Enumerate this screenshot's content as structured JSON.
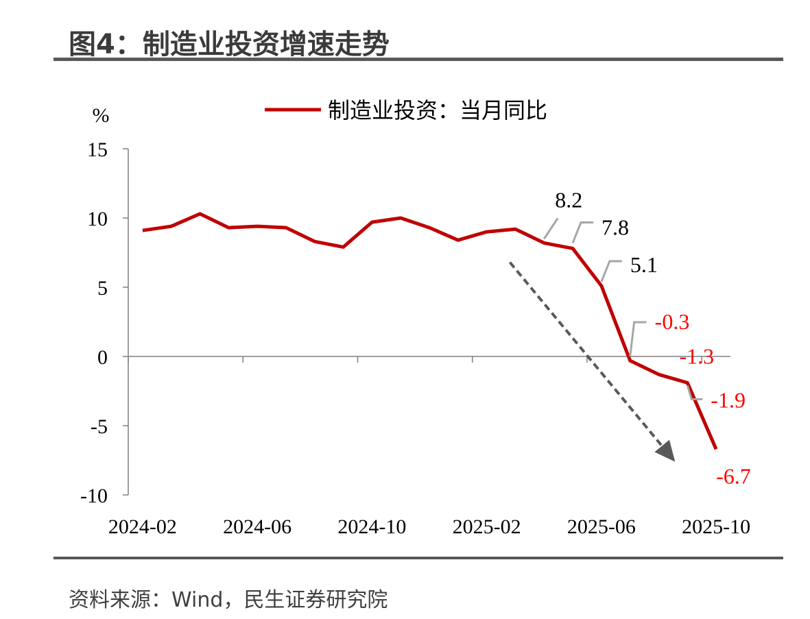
{
  "figure": {
    "title": "图4：制造业投资增速走势",
    "source": "资料来源：Wind，民生证券研究院"
  },
  "chart_data": {
    "type": "line",
    "title": "",
    "ylabel": "%",
    "xlabel": "",
    "ylim": [
      -10,
      15
    ],
    "yticks": [
      15,
      10,
      5,
      0,
      -5,
      -10
    ],
    "ytick_labels": [
      "15",
      "10",
      "5",
      "0",
      "-5",
      "-10"
    ],
    "grid": false,
    "legend_position": "top-center",
    "x": [
      "2024-02",
      "2024-03",
      "2024-04",
      "2024-05",
      "2024-06",
      "2024-07",
      "2024-08",
      "2024-09",
      "2024-10",
      "2024-11",
      "2024-12",
      "2025-01",
      "2025-02",
      "2025-03",
      "2025-04",
      "2025-05",
      "2025-06",
      "2025-07",
      "2025-08",
      "2025-09",
      "2025-10"
    ],
    "xtick_labels": [
      "2024-02",
      "2024-06",
      "2024-10",
      "2025-02",
      "2025-06",
      "2025-10"
    ],
    "series": [
      {
        "name": "制造业投资：当月同比",
        "color": "#c00000",
        "values": [
          9.1,
          9.4,
          10.3,
          9.3,
          9.4,
          9.3,
          8.3,
          7.9,
          9.7,
          10.0,
          9.3,
          8.4,
          9.0,
          9.2,
          8.2,
          7.8,
          5.1,
          -0.3,
          -1.3,
          -1.9,
          -6.7
        ]
      }
    ],
    "annotations": [
      {
        "x": "2025-04",
        "label": "8.2",
        "color": "#000000"
      },
      {
        "x": "2025-05",
        "label": "7.8",
        "color": "#000000"
      },
      {
        "x": "2025-06",
        "label": "5.1",
        "color": "#000000"
      },
      {
        "x": "2025-07",
        "label": "-0.3",
        "color": "#ff0000"
      },
      {
        "x": "2025-08",
        "label": "-1.3",
        "color": "#ff0000"
      },
      {
        "x": "2025-09",
        "label": "-1.9",
        "color": "#ff0000"
      },
      {
        "x": "2025-10",
        "label": "-6.7",
        "color": "#ff0000"
      }
    ],
    "trend_arrow": {
      "from": {
        "x": "2025-03",
        "y": 6.8
      },
      "to": {
        "x": "2025-09",
        "y": -8.0
      },
      "style": "dashed",
      "color": "#595959"
    }
  }
}
